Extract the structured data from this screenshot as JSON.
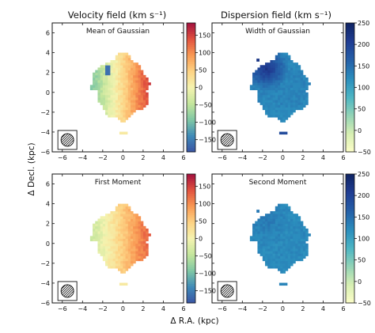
{
  "colors": {
    "velocity_map": [
      "#3a54a4",
      "#3f8ab8",
      "#7fc7a5",
      "#c3e59c",
      "#f4f3b0",
      "#fdd384",
      "#f99a54",
      "#e2533f",
      "#a4123f"
    ],
    "dispersion_map": [
      "#fcfdc8",
      "#d7efb3",
      "#93d3b6",
      "#4cb5c4",
      "#2b8dbd",
      "#2560a8",
      "#203d93",
      "#0f2463"
    ],
    "frame": "#111111",
    "missing": "#ffffff"
  },
  "figure": {
    "column_titles": [
      "Velocity field (km s⁻¹)",
      "Dispersion field (km s⁻¹)"
    ],
    "ylabel": "Δ Decl. (kpc)",
    "xlabel": "Δ R.A. (kpc)"
  },
  "chart_data": [
    {
      "type": "heatmap",
      "title": "Mean of Gaussian",
      "quantity": "velocity",
      "xlim": [
        -7,
        6
      ],
      "ylim": [
        -6,
        7
      ],
      "xticks": [
        -6,
        -4,
        -2,
        0,
        2,
        4,
        6
      ],
      "yticks": [
        -6,
        -4,
        -2,
        0,
        2,
        4,
        6
      ],
      "x_tick_labels": [
        "−6",
        "−4",
        "−2",
        "0",
        "2",
        "4",
        "6"
      ],
      "y_tick_labels": [
        "−6",
        "−4",
        "−2",
        "0",
        "2",
        "4",
        "6"
      ],
      "colorbar": {
        "range": [
          -185,
          185
        ],
        "ticks": [
          -150,
          -100,
          -50,
          0,
          50,
          100,
          150
        ],
        "tick_labels": [
          "−150",
          "−100",
          "−50",
          "0",
          "50",
          "100",
          "150"
        ],
        "colormap": "velocity_map"
      },
      "field": {
        "gradient": "east-west",
        "west_value": -90,
        "east_value": 150,
        "blob_value": -160,
        "blob_at": [
          -1.5,
          2.3
        ]
      },
      "beam": {
        "center": [
          -5.5,
          -4.8
        ]
      }
    },
    {
      "type": "heatmap",
      "title": "Width of Gaussian",
      "quantity": "dispersion",
      "xlim": [
        -7,
        6
      ],
      "ylim": [
        -6,
        7
      ],
      "xticks": [
        -6,
        -4,
        -2,
        0,
        2,
        4,
        6
      ],
      "yticks": [
        -6,
        -4,
        -2,
        0,
        2,
        4,
        6
      ],
      "x_tick_labels": [
        "−6",
        "−4",
        "−2",
        "0",
        "2",
        "4",
        "6"
      ],
      "y_tick_labels": [],
      "colorbar": {
        "range": [
          -50,
          250
        ],
        "ticks": [
          -50,
          0,
          50,
          100,
          150,
          200,
          250
        ],
        "tick_labels": [
          "−50",
          "0",
          "50",
          "100",
          "150",
          "200",
          "250"
        ],
        "colormap": "dispersion_map"
      },
      "field": {
        "base_value": 130,
        "northwest_value": 220,
        "south_value": 110
      },
      "beam": {
        "center": [
          -5.5,
          -4.8
        ]
      }
    },
    {
      "type": "heatmap",
      "title": "First Moment",
      "quantity": "velocity",
      "xlim": [
        -7,
        6
      ],
      "ylim": [
        -6,
        7
      ],
      "xticks": [
        -6,
        -4,
        -2,
        0,
        2,
        4,
        6
      ],
      "yticks": [
        -6,
        -4,
        -2,
        0,
        2,
        4,
        6
      ],
      "x_tick_labels": [
        "−6",
        "−4",
        "−2",
        "0",
        "2",
        "4",
        "6"
      ],
      "y_tick_labels": [
        "−6",
        "−4",
        "−2",
        "0",
        "2",
        "4",
        "6"
      ],
      "colorbar": {
        "range": [
          -185,
          185
        ],
        "ticks": [
          -150,
          -100,
          -50,
          0,
          50,
          100,
          150
        ],
        "tick_labels": [
          "−150",
          "−100",
          "−50",
          "0",
          "50",
          "100",
          "150"
        ],
        "colormap": "velocity_map"
      },
      "field": {
        "gradient": "east-west",
        "west_value": -40,
        "east_value": 130
      },
      "beam": {
        "center": [
          -5.5,
          -4.8
        ]
      }
    },
    {
      "type": "heatmap",
      "title": "Second Moment",
      "quantity": "dispersion",
      "xlim": [
        -7,
        6
      ],
      "ylim": [
        -6,
        7
      ],
      "xticks": [
        -6,
        -4,
        -2,
        0,
        2,
        4,
        6
      ],
      "yticks": [
        -6,
        -4,
        -2,
        0,
        2,
        4,
        6
      ],
      "x_tick_labels": [
        "−6",
        "−4",
        "−2",
        "0",
        "2",
        "4",
        "6"
      ],
      "y_tick_labels": [],
      "colorbar": {
        "range": [
          -50,
          250
        ],
        "ticks": [
          -50,
          0,
          50,
          100,
          150,
          200,
          250
        ],
        "tick_labels": [
          "−50",
          "0",
          "50",
          "100",
          "150",
          "200",
          "250"
        ],
        "colormap": "dispersion_map"
      },
      "field": {
        "base_value": 125,
        "northwest_value": 140,
        "south_value": 120
      },
      "beam": {
        "center": [
          -5.5,
          -4.8
        ]
      }
    }
  ]
}
